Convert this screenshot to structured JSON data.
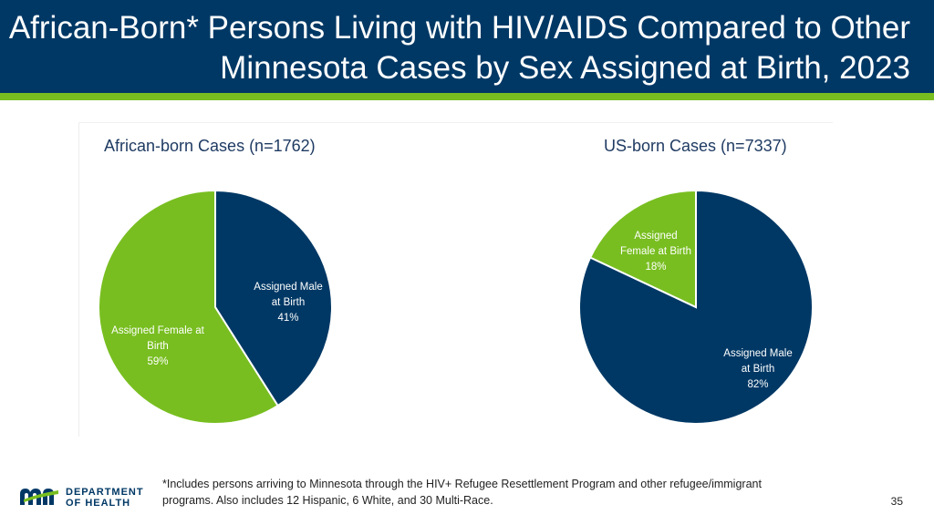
{
  "header": {
    "title_line1": "African-Born* Persons Living with HIV/AIDS Compared to Other",
    "title_line2": "Minnesota Cases by Sex Assigned at Birth, 2023"
  },
  "colors": {
    "navy": "#003865",
    "green": "#78be20",
    "title_text": "#1f3b63"
  },
  "chart_data": [
    {
      "type": "pie",
      "title": "African-born Cases (n=1762)",
      "slices": [
        {
          "label_lines": [
            "Assigned Male",
            "at Birth",
            "41%"
          ],
          "value": 41,
          "color": "#003865"
        },
        {
          "label_lines": [
            "Assigned Female at",
            "Birth",
            "59%"
          ],
          "value": 59,
          "color": "#78be20"
        }
      ]
    },
    {
      "type": "pie",
      "title": "US-born Cases (n=7337)",
      "slices": [
        {
          "label_lines": [
            "Assigned Male",
            "at Birth",
            "82%"
          ],
          "value": 82,
          "color": "#003865"
        },
        {
          "label_lines": [
            "Assigned",
            "Female at Birth",
            "18%"
          ],
          "value": 18,
          "color": "#78be20"
        }
      ]
    }
  ],
  "footnote": {
    "line1": "*Includes persons arriving to Minnesota through the HIV+ Refugee Resettlement Program and other refugee/immigrant",
    "line2": "programs. Also includes 12 Hispanic, 6 White, and 30 Multi-Race."
  },
  "page_number": "35",
  "logo": {
    "line1": "DEPARTMENT",
    "line2": "OF HEALTH",
    "icon": "mn-state-logo-icon"
  }
}
